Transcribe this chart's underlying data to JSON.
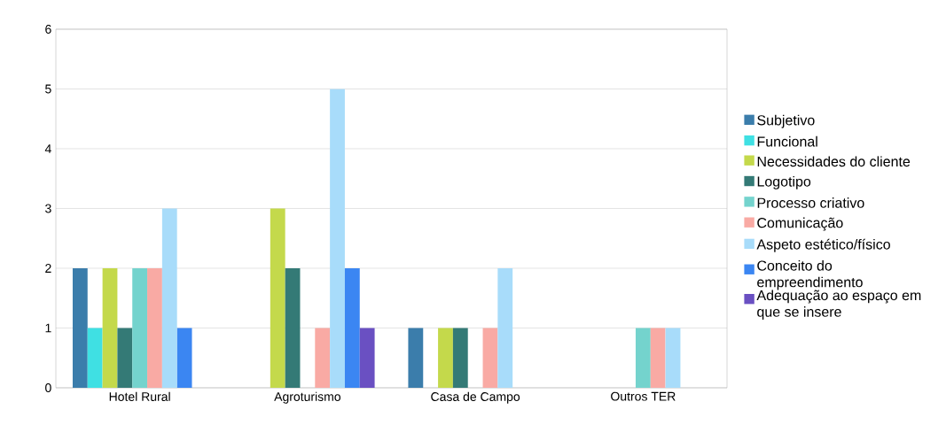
{
  "chart_data": {
    "type": "bar",
    "categories": [
      "Hotel Rural",
      "Agroturismo",
      "Casa de Campo",
      "Outros TER"
    ],
    "series": [
      {
        "name": "Subjetivo",
        "color": "#3b7dab",
        "values": [
          2,
          0,
          1,
          0
        ]
      },
      {
        "name": "Funcional",
        "color": "#3fe0e3",
        "values": [
          1,
          0,
          0,
          0
        ]
      },
      {
        "name": "Necessidades do cliente",
        "color": "#c4d94b",
        "values": [
          2,
          3,
          1,
          0
        ]
      },
      {
        "name": "Logotipo",
        "color": "#347a76",
        "values": [
          1,
          2,
          1,
          0
        ]
      },
      {
        "name": "Processo criativo",
        "color": "#74d3cd",
        "values": [
          2,
          0,
          0,
          1
        ]
      },
      {
        "name": "Comunicação",
        "color": "#f9aaa4",
        "values": [
          2,
          1,
          1,
          1
        ]
      },
      {
        "name": "Aspeto estético/físico",
        "color": "#a8dcfa",
        "values": [
          3,
          5,
          2,
          1
        ]
      },
      {
        "name": "Conceito do empreendimento",
        "color": "#3b86f2",
        "values": [
          1,
          2,
          0,
          0
        ]
      },
      {
        "name": "Adequação ao espaço em que se insere",
        "color": "#6a50c2",
        "values": [
          0,
          1,
          0,
          0
        ]
      }
    ],
    "ylim": [
      0,
      6
    ],
    "yticks": [
      0,
      1,
      2,
      3,
      4,
      5,
      6
    ],
    "grid": "y",
    "legend": "right"
  }
}
